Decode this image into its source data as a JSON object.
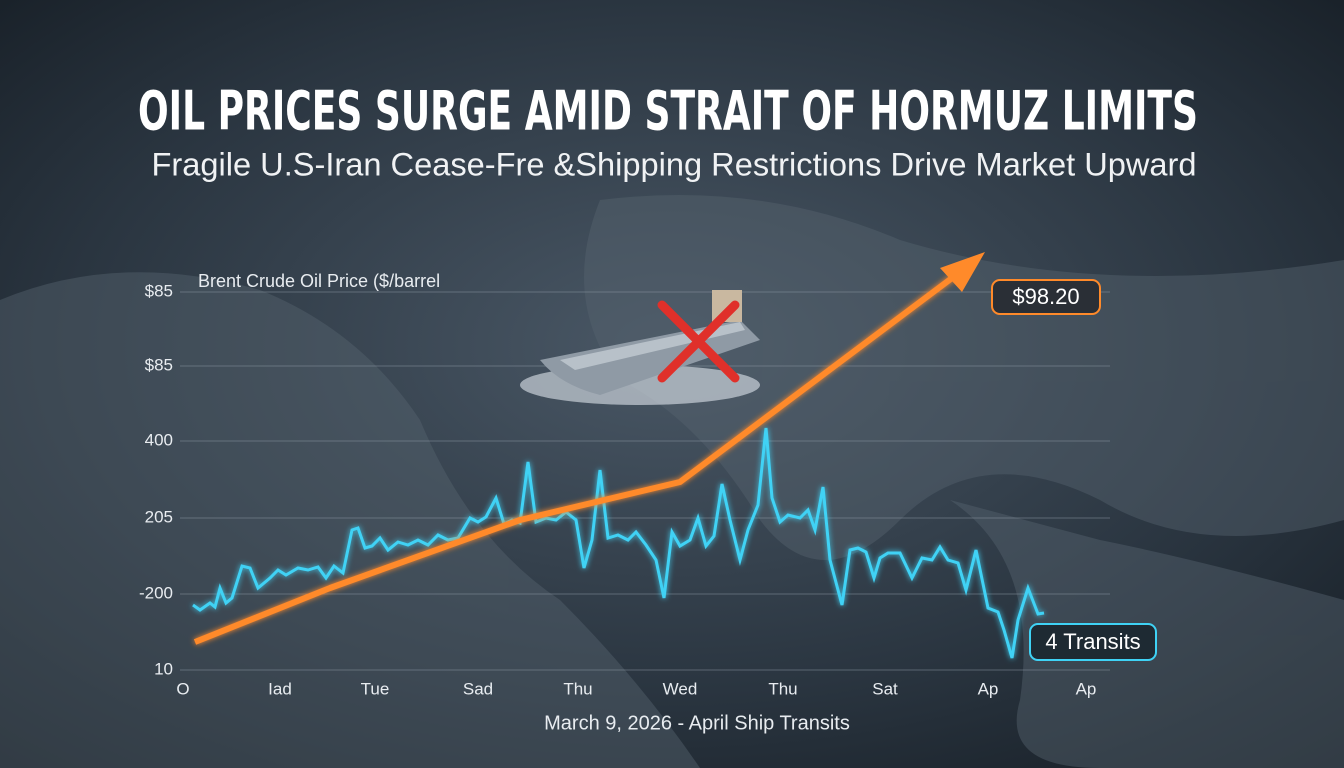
{
  "header": {
    "title": "OIL PRICES SURGE AMID STRAIT OF HORMUZ LIMITS",
    "subtitle": "Fragile U.S-Iran Cease-Fre &Shipping Restrictions Drive Market Upward"
  },
  "chart": {
    "axis_title": "Brent Crude Oil Price ($/barrel",
    "y_labels": [
      "$85",
      "$85",
      "400",
      "205",
      "-200",
      "10"
    ],
    "x_labels": [
      "O",
      "Iad",
      "Tue",
      "Sad",
      "Thu",
      "Wed",
      "Thu",
      "Sat",
      "Ap",
      "Ap"
    ],
    "price_label": "$98.20",
    "transits_label": "4 Transits",
    "caption": "March 9, 2026 - April Ship Transits"
  }
}
